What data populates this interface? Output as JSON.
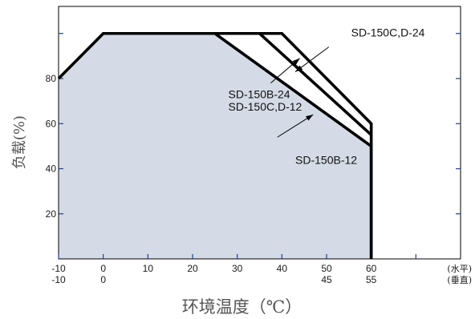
{
  "chart_data": {
    "type": "line",
    "xlabel": "环境温度（℃）",
    "ylabel": "负载(%)",
    "xlim": [
      -10,
      80
    ],
    "ylim": [
      0,
      112
    ],
    "x_ticks": [
      -10,
      0,
      10,
      20,
      30,
      40,
      50,
      60
    ],
    "x_ticks_vertical": [
      "-10",
      "0",
      "",
      "",
      "",
      "",
      "45",
      "55"
    ],
    "x_tick_right_marker": 70,
    "x_unit_horizontal": "(水平)",
    "x_unit_vertical": "(垂直)",
    "y_ticks": [
      20,
      40,
      60,
      80
    ],
    "grid": false,
    "colors": {
      "fill": "#d4dbe6",
      "line": "#000000",
      "tick": "#1f3f8f"
    },
    "series": [
      {
        "x": [
          -10,
          0,
          25,
          60,
          60
        ],
        "y": [
          80,
          100,
          100,
          50,
          0
        ],
        "filled": true
      },
      {
        "x": [
          25,
          35,
          60
        ],
        "y": [
          100,
          100,
          55
        ]
      },
      {
        "x": [
          35,
          40,
          60,
          60
        ],
        "y": [
          100,
          100,
          60,
          0
        ]
      }
    ],
    "annotations": [
      {
        "text": "SD-150C,D-24",
        "x": 55.5,
        "y": 100.5,
        "arrow_from": [
          50.5,
          94
        ],
        "arrow_to": [
          43,
          83
        ]
      },
      {
        "text": "SD-150B-24",
        "x": 28,
        "y": 73
      },
      {
        "text": "SD-150C,D-12",
        "x": 28,
        "y": 67.5,
        "arrow_from": [
          37.5,
          78
        ],
        "arrow_to": [
          44,
          89
        ]
      },
      {
        "text": "SD-150B-12",
        "x": 43,
        "y": 44,
        "arrow_from": [
          39,
          54
        ],
        "arrow_to": [
          47,
          64
        ]
      }
    ]
  }
}
